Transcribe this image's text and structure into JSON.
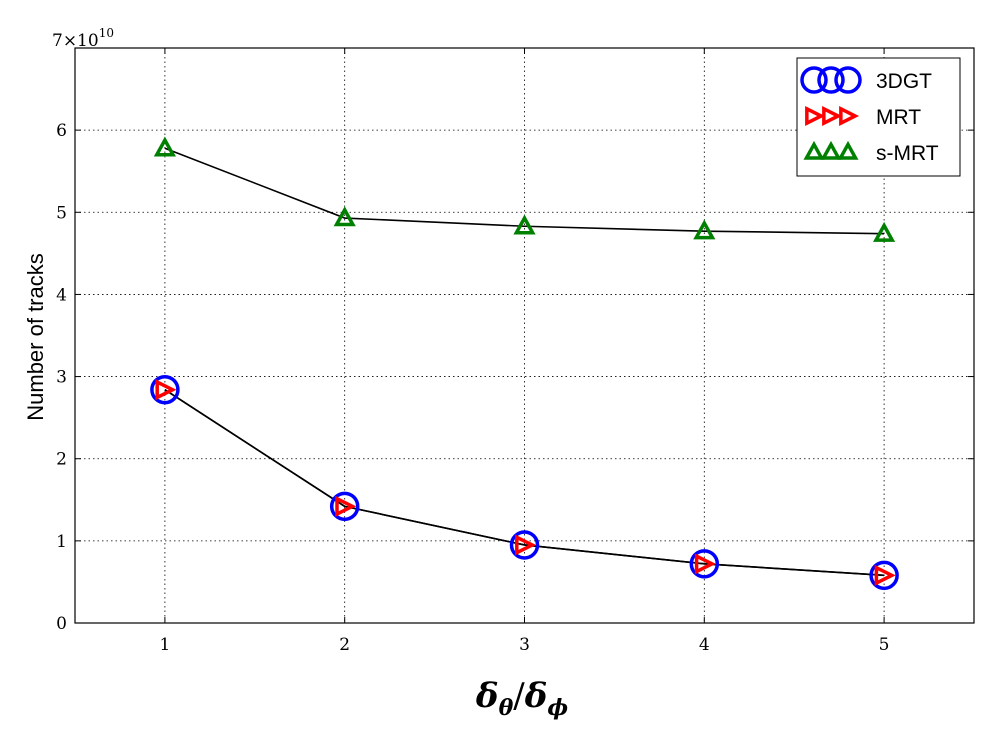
{
  "chart_data": {
    "type": "line",
    "title": "",
    "xlabel": "δθ/δϕ",
    "xlabel_main_1": "δ",
    "xlabel_sub_1": "θ",
    "xlabel_slash": "/",
    "xlabel_main_2": "δ",
    "xlabel_sub_2": "ϕ",
    "ylabel": "Number of tracks",
    "y_multiplier_base": "7×10",
    "y_multiplier_exp": "10",
    "x": [
      1,
      2,
      3,
      4,
      5
    ],
    "xlim": [
      0.5,
      5.5
    ],
    "ylim": [
      0,
      7
    ],
    "y_scale": 10000000000.0,
    "xticks": [
      "1",
      "2",
      "3",
      "4",
      "5"
    ],
    "yticks": [
      "0",
      "1",
      "2",
      "3",
      "4",
      "5",
      "6"
    ],
    "grid": true,
    "legend_position": "top-right",
    "series": [
      {
        "name": "3DGT",
        "values": [
          2.84,
          1.42,
          0.95,
          0.72,
          0.58
        ],
        "color": "#0000ff",
        "marker": "circle"
      },
      {
        "name": "MRT",
        "values": [
          2.84,
          1.42,
          0.95,
          0.72,
          0.58
        ],
        "color": "#ff0000",
        "marker": "triangle-right"
      },
      {
        "name": "s-MRT",
        "values": [
          5.78,
          4.93,
          4.83,
          4.77,
          4.74
        ],
        "color": "#008000",
        "marker": "triangle-up"
      }
    ]
  }
}
